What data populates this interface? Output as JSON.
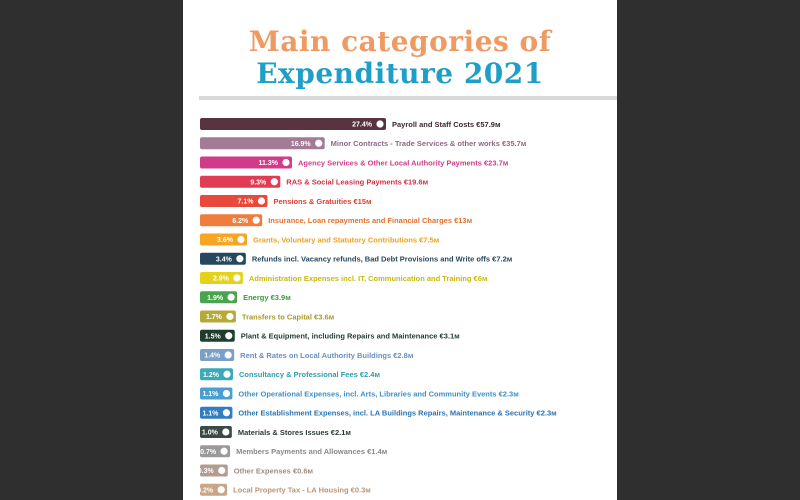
{
  "title": {
    "line1": "Main categories of",
    "line2": "Expenditure 2021"
  },
  "chart_data": {
    "type": "bar",
    "orientation": "horizontal",
    "title": "Main categories of Expenditure 2021",
    "xlabel": "",
    "ylabel": "",
    "grid": false,
    "legend": "none",
    "xlim": [
      0,
      27.4
    ],
    "bars": [
      {
        "pct": 27.4,
        "pct_label": "27.4%",
        "label": "Payroll and Staff Costs €57.9м",
        "color": "#5a3340",
        "label_color": "#3a2a30"
      },
      {
        "pct": 16.9,
        "pct_label": "16.9%",
        "label": "Minor Contracts - Trade Services & other works €35.7м",
        "color": "#a37a97",
        "label_color": "#8d6a84"
      },
      {
        "pct": 11.3,
        "pct_label": "11.3%",
        "label": "Agency Services & Other Local Authority Payments €23.7м",
        "color": "#d23b8a",
        "label_color": "#d23b8a"
      },
      {
        "pct": 9.3,
        "pct_label": "9.3%",
        "label": "RAS & Social Leasing Payments €19.6м",
        "color": "#e03c54",
        "label_color": "#d03048"
      },
      {
        "pct": 7.1,
        "pct_label": "7.1%",
        "label": "Pensions & Gratuities €15м",
        "color": "#e8493a",
        "label_color": "#e0402f"
      },
      {
        "pct": 6.2,
        "pct_label": "6.2%",
        "label": "Insurance, Loan repayments and Financial Charges €13м",
        "color": "#ef7d3d",
        "label_color": "#e7702f"
      },
      {
        "pct": 3.6,
        "pct_label": "3.6%",
        "label": "Grants, Voluntary and Statutory Contributions €7.5м",
        "color": "#f6a623",
        "label_color": "#f0a020"
      },
      {
        "pct": 3.4,
        "pct_label": "3.4%",
        "label": "Refunds incl. Vacancy refunds, Bad Debt Provisions and Write offs €7.2м",
        "color": "#26485f",
        "label_color": "#26485f"
      },
      {
        "pct": 2.9,
        "pct_label": "2.9%",
        "label": "Administration Expenses incl. IT, Communication and Training €6м",
        "color": "#e4d21c",
        "label_color": "#c8b80e"
      },
      {
        "pct": 1.9,
        "pct_label": "1.9%",
        "label": "Energy €3.9м",
        "color": "#4aa34e",
        "label_color": "#3c9a40"
      },
      {
        "pct": 1.7,
        "pct_label": "1.7%",
        "label": "Transfers to Capital €3.6м",
        "color": "#b5aa38",
        "label_color": "#a69b2c"
      },
      {
        "pct": 1.5,
        "pct_label": "1.5%",
        "label": "Plant & Equipment, including Repairs and Maintenance €3.1м",
        "color": "#1f3d2c",
        "label_color": "#1f3d2c"
      },
      {
        "pct": 1.4,
        "pct_label": "1.4%",
        "label": "Rent & Rates on Local Authority Buildings €2.8м",
        "color": "#7b9fc8",
        "label_color": "#6a8fbc"
      },
      {
        "pct": 1.2,
        "pct_label": "1.2%",
        "label": "Consultancy & Professional Fees €2.4м",
        "color": "#3baab6",
        "label_color": "#2f9eaa"
      },
      {
        "pct": 1.1,
        "pct_label": "1.1%",
        "label": "Other Operational Expenses, incl. Arts, Libraries and Community Events €2.3м",
        "color": "#4a9ed4",
        "label_color": "#3c90c8"
      },
      {
        "pct": 1.1,
        "pct_label": "1.1%",
        "label": "Other Establishment Expenses, incl. LA Buildings Repairs, Maintenance & Security €2.3м",
        "color": "#2f7fc0",
        "label_color": "#2a74b2"
      },
      {
        "pct": 1.0,
        "pct_label": "1.0%",
        "label": "Materials & Stores Issues €2.1м",
        "color": "#3b4a42",
        "label_color": "#2e3b34"
      },
      {
        "pct": 0.7,
        "pct_label": "0.7%",
        "label": "Members Payments and Allowances €1.4м",
        "color": "#9a9a9a",
        "label_color": "#8a8a8a"
      },
      {
        "pct": 0.3,
        "pct_label": "0.3%",
        "label": "Other Expenses €0.6м",
        "color": "#b09c92",
        "label_color": "#a08c82"
      },
      {
        "pct": 0.2,
        "pct_label": "0.2%",
        "label": "Local Property Tax - LA Housing €0.3м",
        "color": "#c9a58a",
        "label_color": "#b8957a"
      }
    ]
  }
}
